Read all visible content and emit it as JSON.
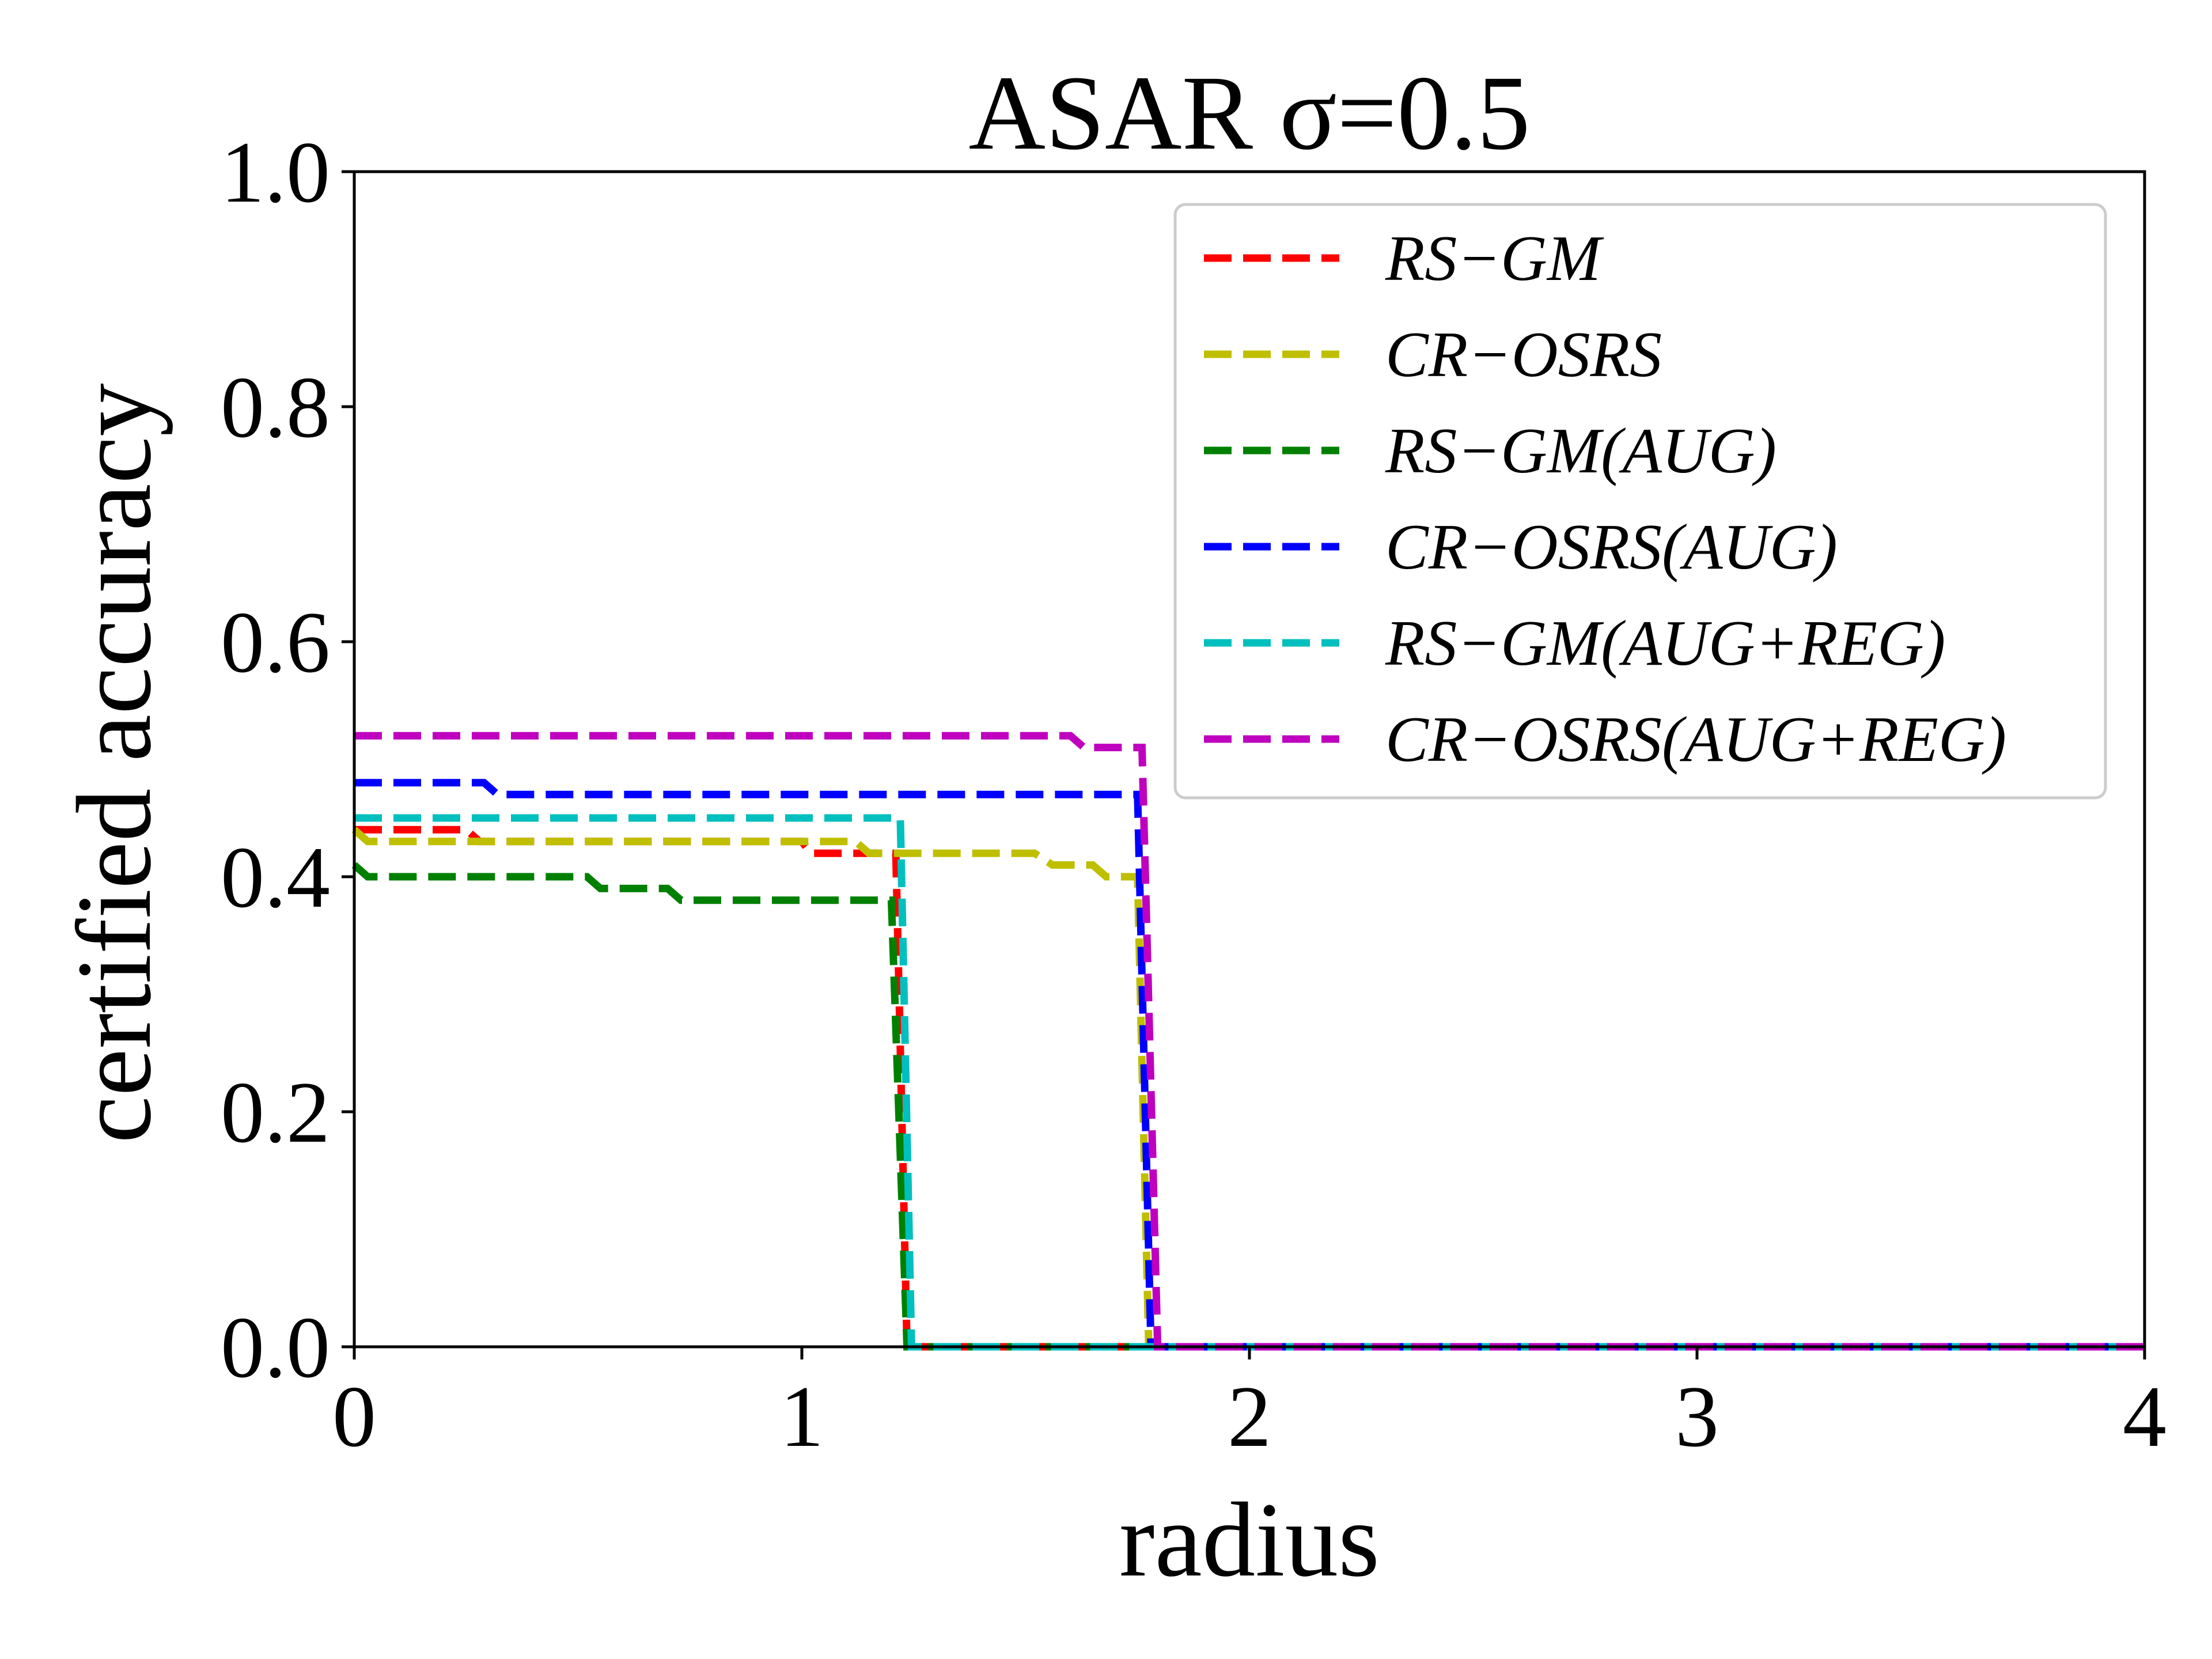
{
  "chart_data": {
    "type": "line",
    "title": "ASAR σ=0.5",
    "xlabel": "radius",
    "ylabel": "certified accuracy",
    "xlim": [
      0,
      4
    ],
    "ylim": [
      0,
      1.0
    ],
    "xticks": [
      "0",
      "1",
      "2",
      "3",
      "4"
    ],
    "yticks": [
      "0.0",
      "0.2",
      "0.4",
      "0.6",
      "0.8",
      "1.0"
    ],
    "grid": false,
    "legend_position": "top-right",
    "series": [
      {
        "name": "RS−GM",
        "color": "#ff0000",
        "points": [
          [
            0,
            0.44
          ],
          [
            0.25,
            0.44
          ],
          [
            0.28,
            0.43
          ],
          [
            1.0,
            0.43
          ],
          [
            1.02,
            0.42
          ],
          [
            1.21,
            0.42
          ],
          [
            1.235,
            0.0
          ],
          [
            4,
            0.0
          ]
        ]
      },
      {
        "name": "CR−OSRS",
        "color": "#bfbf00",
        "points": [
          [
            0,
            0.44
          ],
          [
            0.03,
            0.43
          ],
          [
            1.12,
            0.43
          ],
          [
            1.15,
            0.42
          ],
          [
            1.52,
            0.42
          ],
          [
            1.56,
            0.41
          ],
          [
            1.65,
            0.41
          ],
          [
            1.68,
            0.4
          ],
          [
            1.75,
            0.4
          ],
          [
            1.775,
            0.0
          ],
          [
            4,
            0.0
          ]
        ]
      },
      {
        "name": "RS−GM(AUG)",
        "color": "#008000",
        "points": [
          [
            0,
            0.41
          ],
          [
            0.03,
            0.4
          ],
          [
            0.52,
            0.4
          ],
          [
            0.55,
            0.39
          ],
          [
            0.7,
            0.39
          ],
          [
            0.73,
            0.38
          ],
          [
            1.2,
            0.38
          ],
          [
            1.235,
            0.0
          ],
          [
            4,
            0.0
          ]
        ]
      },
      {
        "name": "CR−OSRS(AUG)",
        "color": "#0000ff",
        "points": [
          [
            0,
            0.48
          ],
          [
            0.29,
            0.48
          ],
          [
            0.32,
            0.47
          ],
          [
            1.75,
            0.47
          ],
          [
            1.78,
            0.0
          ],
          [
            4,
            0.0
          ]
        ]
      },
      {
        "name": "RS−GM(AUG+REG)",
        "color": "#00bfbf",
        "points": [
          [
            0,
            0.45
          ],
          [
            1.22,
            0.45
          ],
          [
            1.245,
            0.0
          ],
          [
            4,
            0.0
          ]
        ]
      },
      {
        "name": "CR−OSRS(AUG+REG)",
        "color": "#bf00bf",
        "points": [
          [
            0,
            0.52
          ],
          [
            1.6,
            0.52
          ],
          [
            1.63,
            0.51
          ],
          [
            1.76,
            0.51
          ],
          [
            1.795,
            0.0
          ],
          [
            4,
            0.0
          ]
        ]
      }
    ]
  }
}
